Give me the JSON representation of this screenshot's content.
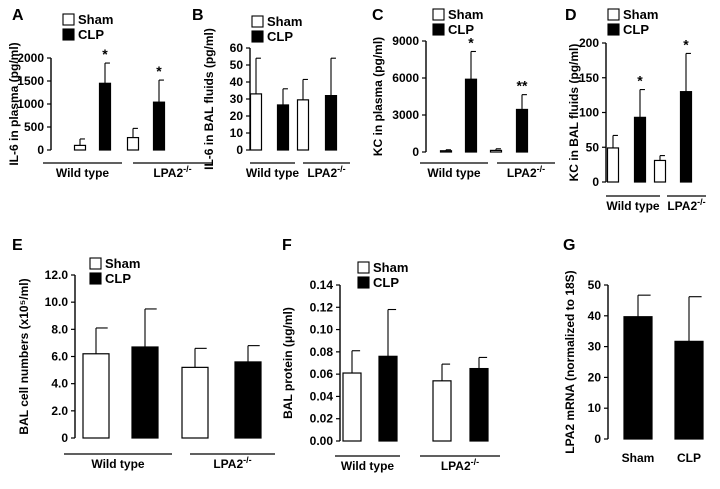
{
  "chart_data": [
    {
      "panel": "A",
      "type": "bar",
      "ylabel": "IL-6 in plasma (pg/ml)",
      "ylim": [
        0,
        2000
      ],
      "yticks": [
        "0",
        "500",
        "1000",
        "1500",
        "2000"
      ],
      "groups": [
        "Wild type",
        "LPA2-/-"
      ],
      "series": [
        {
          "name": "Sham",
          "values": [
            100,
            270
          ],
          "errors": [
            140,
            200
          ]
        },
        {
          "name": "CLP",
          "values": [
            1450,
            1040
          ],
          "errors": [
            440,
            480
          ]
        }
      ],
      "annotations": [
        {
          "group": 0,
          "series": 1,
          "text": "*"
        },
        {
          "group": 1,
          "series": 1,
          "text": "*"
        }
      ],
      "legend": "top-left"
    },
    {
      "panel": "B",
      "type": "bar",
      "ylabel": "IL-6 in BAL fluids (pg/ml)",
      "ylim": [
        0,
        60
      ],
      "yticks": [
        "0",
        "10",
        "20",
        "30",
        "40",
        "50",
        "60"
      ],
      "groups": [
        "Wild type",
        "LPA2-/-"
      ],
      "series": [
        {
          "name": "Sham",
          "values": [
            33,
            29.5
          ],
          "errors": [
            21,
            12
          ]
        },
        {
          "name": "CLP",
          "values": [
            26.5,
            32
          ],
          "errors": [
            9.5,
            22
          ]
        }
      ],
      "annotations": [],
      "legend": "top-left"
    },
    {
      "panel": "C",
      "type": "bar",
      "ylabel": "KC in plasma (pg/ml)",
      "ylim": [
        0,
        9000
      ],
      "yticks": [
        "0",
        "3000",
        "6000",
        "9000"
      ],
      "groups": [
        "Wild type",
        "LPA2-/-"
      ],
      "series": [
        {
          "name": "Sham",
          "values": [
            100,
            130
          ],
          "errors": [
            80,
            130
          ]
        },
        {
          "name": "CLP",
          "values": [
            5900,
            3450
          ],
          "errors": [
            2250,
            1200
          ]
        }
      ],
      "annotations": [
        {
          "group": 0,
          "series": 1,
          "text": "*"
        },
        {
          "group": 1,
          "series": 1,
          "text": "**"
        }
      ],
      "legend": "top-left"
    },
    {
      "panel": "D",
      "type": "bar",
      "ylabel": "KC in BAL fluids (pg/ml)",
      "ylim": [
        0,
        200
      ],
      "yticks": [
        "0",
        "50",
        "100",
        "150",
        "200"
      ],
      "groups": [
        "Wild type",
        "LPA2-/-"
      ],
      "series": [
        {
          "name": "Sham",
          "values": [
            49,
            31
          ],
          "errors": [
            18,
            7
          ]
        },
        {
          "name": "CLP",
          "values": [
            93,
            130
          ],
          "errors": [
            40,
            55
          ]
        }
      ],
      "annotations": [
        {
          "group": 0,
          "series": 1,
          "text": "*"
        },
        {
          "group": 1,
          "series": 1,
          "text": "*"
        }
      ],
      "legend": "top-left"
    },
    {
      "panel": "E",
      "type": "bar",
      "ylabel": "BAL cell numbers (x10⁵/ml)",
      "ylim": [
        0,
        12
      ],
      "yticks": [
        "0",
        "2.0",
        "4.0",
        "6.0",
        "8.0",
        "10.0",
        "12.0"
      ],
      "groups": [
        "Wild type",
        "LPA2-/-"
      ],
      "series": [
        {
          "name": "Sham",
          "values": [
            6.2,
            5.2
          ],
          "errors": [
            1.9,
            1.4
          ]
        },
        {
          "name": "CLP",
          "values": [
            6.7,
            5.6
          ],
          "errors": [
            2.8,
            1.2
          ]
        }
      ],
      "annotations": [],
      "legend": "top-left"
    },
    {
      "panel": "F",
      "type": "bar",
      "ylabel": "BAL protein (μg/ml)",
      "ylim": [
        0,
        0.14
      ],
      "yticks": [
        "0.00",
        "0.02",
        "0.04",
        "0.06",
        "0.08",
        "0.10",
        "0.12",
        "0.14"
      ],
      "groups": [
        "Wild type",
        "LPA2-/-"
      ],
      "series": [
        {
          "name": "Sham",
          "values": [
            0.061,
            0.054
          ],
          "errors": [
            0.02,
            0.015
          ]
        },
        {
          "name": "CLP",
          "values": [
            0.076,
            0.065
          ],
          "errors": [
            0.042,
            0.01
          ]
        }
      ],
      "annotations": [],
      "legend": "top-left"
    },
    {
      "panel": "G",
      "type": "bar",
      "ylabel": "LPA2 mRNA (normalized to 18S)",
      "ylim": [
        0,
        50
      ],
      "yticks": [
        "0",
        "10",
        "20",
        "30",
        "40",
        "50"
      ],
      "categories": [
        "Sham",
        "CLP"
      ],
      "values": [
        39.7,
        31.7
      ],
      "errors": [
        7,
        14.5
      ],
      "annotations": [],
      "legend": "none"
    }
  ],
  "colors": {
    "sham": "#ffffff",
    "clp": "#000000",
    "stroke": "#000000"
  }
}
